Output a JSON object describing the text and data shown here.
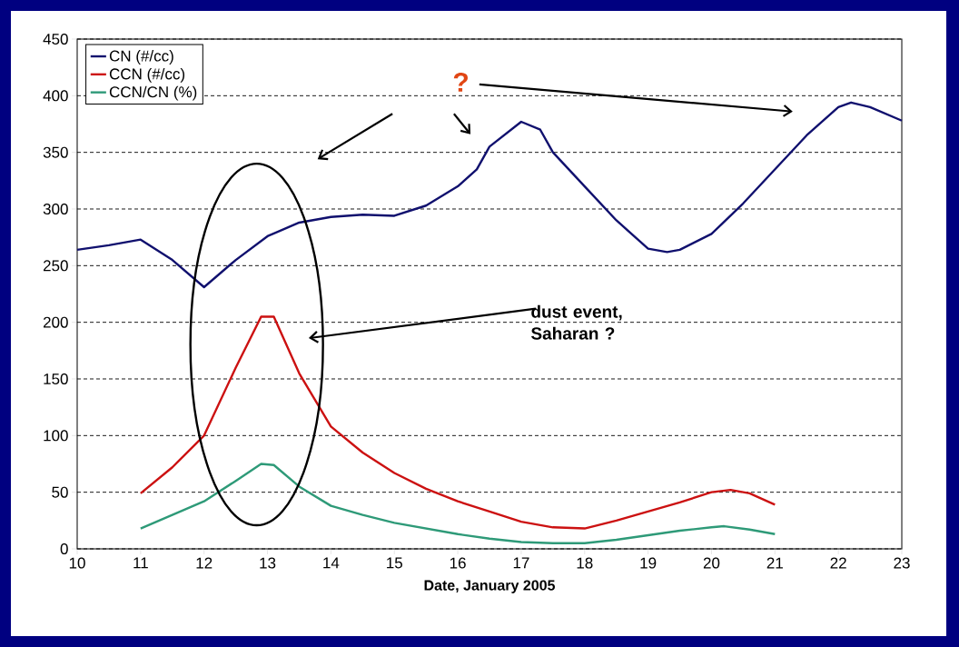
{
  "chart_data": {
    "type": "line",
    "xlabel": "Date, January 2005",
    "xlim": [
      10,
      23
    ],
    "xticks": [
      10,
      11,
      12,
      13,
      14,
      15,
      16,
      17,
      18,
      19,
      20,
      21,
      22,
      23
    ],
    "ylim": [
      0,
      450
    ],
    "yticks": [
      0,
      50,
      100,
      150,
      200,
      250,
      300,
      350,
      400,
      450
    ],
    "grid": "y",
    "legend": "top left",
    "line_style": "solid",
    "marker": "none",
    "series": [
      {
        "name": "CN (#/cc)",
        "color": "#10106e",
        "x": [
          10,
          10.5,
          11,
          11.5,
          12,
          12.5,
          13,
          13.5,
          14,
          14.5,
          15,
          15.5,
          16,
          16.3,
          16.5,
          17,
          17.3,
          17.5,
          18,
          18.5,
          19,
          19.3,
          19.5,
          20,
          20.5,
          21,
          21.5,
          22,
          22.2,
          22.5,
          23
        ],
        "values": [
          264,
          268,
          273,
          255,
          231,
          255,
          276,
          288,
          293,
          295,
          294,
          303,
          320,
          335,
          355,
          377,
          370,
          350,
          320,
          290,
          265,
          262,
          264,
          278,
          305,
          335,
          365,
          390,
          394,
          390,
          378
        ]
      },
      {
        "name": "CCN (#/cc)",
        "color": "#cc1111",
        "x": [
          11,
          11.5,
          12,
          12.5,
          12.9,
          13.1,
          13.5,
          14,
          14.5,
          15,
          15.5,
          16,
          16.5,
          17,
          17.5,
          18,
          18.5,
          19,
          19.5,
          20,
          20.3,
          20.6,
          21
        ],
        "values": [
          49,
          72,
          100,
          160,
          205,
          205,
          155,
          108,
          85,
          67,
          53,
          42,
          33,
          24,
          19,
          18,
          25,
          33,
          41,
          50,
          52,
          49,
          39
        ]
      },
      {
        "name": "CCN/CN (%)",
        "color": "#2e9a78",
        "x": [
          11,
          11.5,
          12,
          12.5,
          12.9,
          13.1,
          13.5,
          14,
          14.5,
          15,
          15.5,
          16,
          16.5,
          17,
          17.5,
          18,
          18.5,
          19,
          19.5,
          20,
          20.2,
          20.6,
          21
        ],
        "values": [
          18,
          30,
          42,
          60,
          75,
          74,
          55,
          38,
          30,
          23,
          18,
          13,
          9,
          6,
          5,
          5,
          8,
          12,
          16,
          19,
          20,
          17,
          13
        ]
      }
    ],
    "annotations": [
      "?",
      "dust event, Saharan ?"
    ]
  }
}
